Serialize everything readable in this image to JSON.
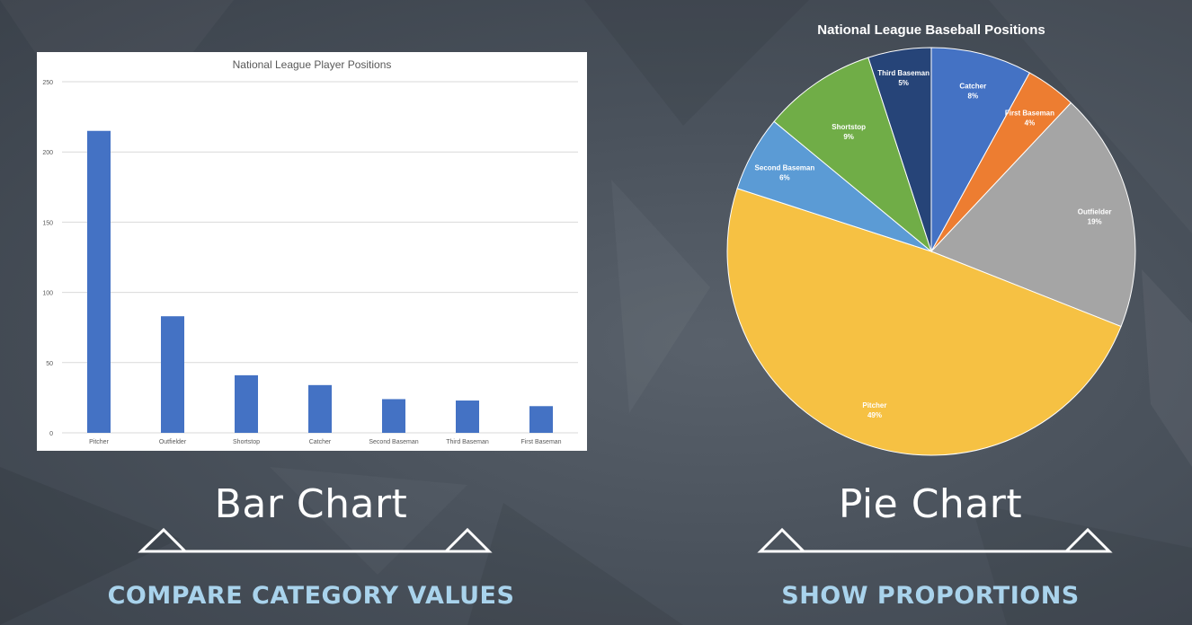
{
  "bar_caption": "Bar Chart",
  "bar_subcaption": "COMPARE CATEGORY VALUES",
  "pie_caption": "Pie Chart",
  "pie_subcaption": "SHOW PROPORTIONS",
  "colors": {
    "bar": "#4472c4",
    "caption": "#ffffff",
    "subcaption": "#a9d3ec"
  },
  "chart_data": [
    {
      "type": "bar",
      "title": "National League Player Positions",
      "categories": [
        "Pitcher",
        "Outfielder",
        "Shortstop",
        "Catcher",
        "Second Baseman",
        "Third Baseman",
        "First Baseman"
      ],
      "values": [
        215,
        83,
        41,
        34,
        24,
        23,
        19
      ],
      "yticks": [
        "0",
        "50",
        "100",
        "150",
        "200",
        "250"
      ],
      "ylim": [
        0,
        250
      ],
      "grid": true,
      "legend": "none"
    },
    {
      "type": "pie",
      "title": "National League Baseball Positions",
      "slices": [
        {
          "label": "Catcher",
          "pct_label": "8%",
          "value": 8,
          "color": "#4472c4"
        },
        {
          "label": "First Baseman",
          "pct_label": "4%",
          "value": 4,
          "color": "#ed7d31"
        },
        {
          "label": "Outfielder",
          "pct_label": "19%",
          "value": 19,
          "color": "#a5a5a5"
        },
        {
          "label": "Pitcher",
          "pct_label": "49%",
          "value": 49,
          "color": "#f6c143"
        },
        {
          "label": "Second Baseman",
          "pct_label": "6%",
          "value": 6,
          "color": "#5b9bd5"
        },
        {
          "label": "Shortstop",
          "pct_label": "9%",
          "value": 9,
          "color": "#70ad47"
        },
        {
          "label": "Third Baseman",
          "pct_label": "5%",
          "value": 5,
          "color": "#264478"
        }
      ],
      "legend": "none"
    }
  ]
}
